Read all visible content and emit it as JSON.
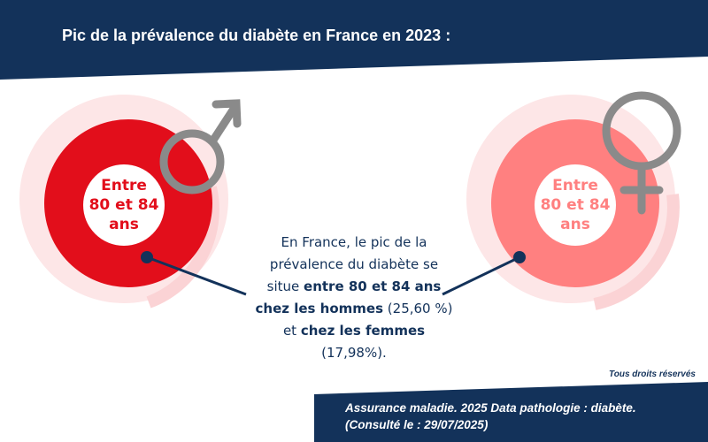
{
  "header": {
    "title": "Pic de la prévalence du diabète en France en 2023 :"
  },
  "men": {
    "label_line1": "Entre",
    "label_line2": "80 et 84",
    "label_line3": "ans"
  },
  "women": {
    "label_line1": "Entre",
    "label_line2": "80 et 84",
    "label_line3": "ans"
  },
  "description": {
    "l1": "En France, le pic de la",
    "l2": "prévalence du diabète se",
    "l3a": "situe ",
    "l3b": "entre 80 et 84 ans",
    "l4a": "chez les hommes",
    "l4b": " (25,60 %)",
    "l5a": "et ",
    "l5b": "chez les femmes",
    "l6": "(17,98%)."
  },
  "rights": "Tous droits réservés",
  "source": {
    "line1": "Assurance maladie. 2025 Data pathologie : diabète.",
    "line2": "(Consulté le : 29/07/2025)"
  },
  "colors": {
    "navy": "#13325a",
    "red": "#e20e1b",
    "pink": "#ff8080"
  }
}
